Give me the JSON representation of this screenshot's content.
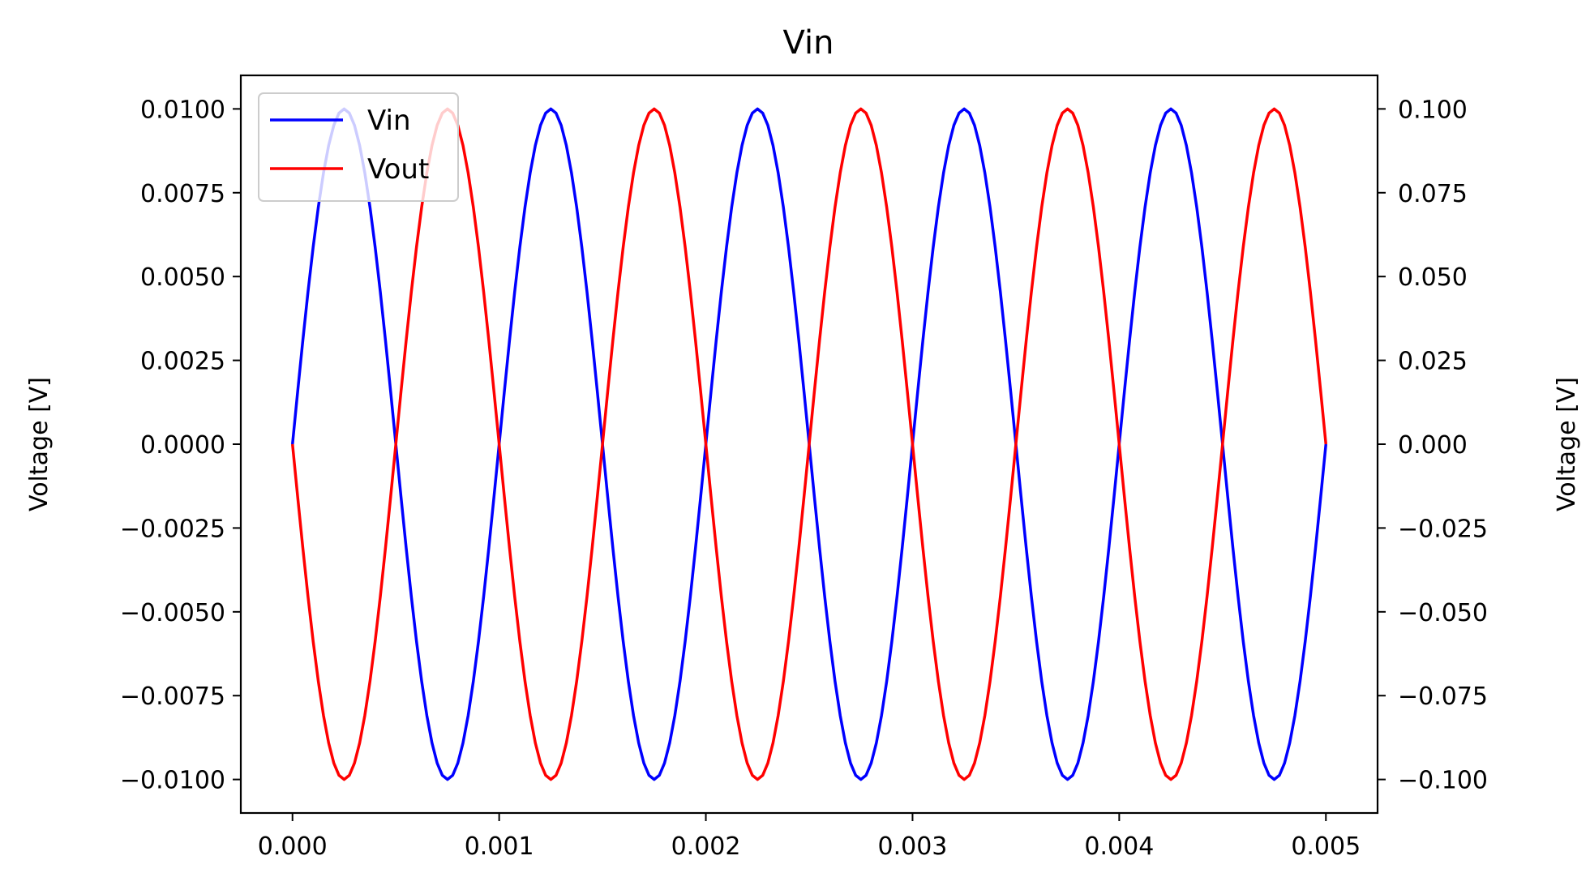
{
  "chart_data": {
    "type": "line",
    "title": "Vin",
    "xlabel": "",
    "ylabel_left": "Voltage [V]",
    "ylabel_right": "Voltage [V]",
    "xlim": [
      -0.00025,
      0.00525
    ],
    "ylim_left": [
      -0.011,
      0.011
    ],
    "ylim_right": [
      -0.11,
      0.11
    ],
    "x_ticks": [
      0.0,
      0.001,
      0.002,
      0.003,
      0.004,
      0.005
    ],
    "x_tick_labels": [
      "0.000",
      "0.001",
      "0.002",
      "0.003",
      "0.004",
      "0.005"
    ],
    "y_left_ticks": [
      0.01,
      0.0075,
      0.005,
      0.0025,
      0.0,
      -0.0025,
      -0.005,
      -0.0075,
      -0.01
    ],
    "y_left_tick_labels": [
      "0.0100",
      "0.0075",
      "0.0050",
      "0.0025",
      "0.0000",
      "−0.0025",
      "−0.0050",
      "−0.0075",
      "−0.0100"
    ],
    "y_right_ticks": [
      0.1,
      0.075,
      0.05,
      0.025,
      0.0,
      -0.025,
      -0.05,
      -0.075,
      -0.1
    ],
    "y_right_tick_labels": [
      "0.100",
      "0.075",
      "0.050",
      "0.025",
      "0.000",
      "−0.025",
      "−0.050",
      "−0.075",
      "−0.100"
    ],
    "grid": false,
    "legend_position": "top-left",
    "series": [
      {
        "name": "Vin",
        "axis": "left",
        "color": "#0000ff",
        "waveform": "sine",
        "amplitude": 0.01,
        "frequency_hz": 1000,
        "phase_deg": 0,
        "x_start": 0.0,
        "x_end": 0.005
      },
      {
        "name": "Vout",
        "axis": "right",
        "color": "#ff0000",
        "waveform": "sine",
        "amplitude": 0.1,
        "frequency_hz": 1000,
        "phase_deg": 180,
        "x_start": 0.0,
        "x_end": 0.005
      }
    ]
  }
}
